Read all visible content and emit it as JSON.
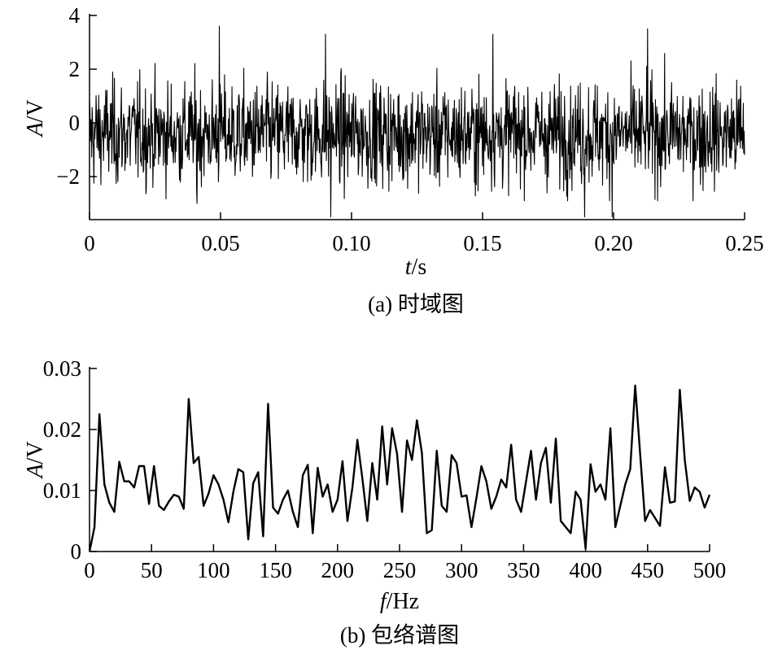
{
  "chart_data": [
    {
      "type": "line",
      "caption": "(a) 时域图",
      "xlabel_var": "t",
      "xlabel_unit": "/s",
      "ylabel_var": "A",
      "ylabel_unit": "/V",
      "xlim": [
        0,
        0.25
      ],
      "ylim": [
        -3.6,
        4
      ],
      "xticks": [
        {
          "v": 0,
          "label": "0"
        },
        {
          "v": 0.05,
          "label": "0.05"
        },
        {
          "v": 0.1,
          "label": "0.10"
        },
        {
          "v": 0.15,
          "label": "0.15"
        },
        {
          "v": 0.2,
          "label": "0.20"
        },
        {
          "v": 0.25,
          "label": "0.25"
        }
      ],
      "yticks": [
        {
          "v": -2,
          "label": "−2"
        },
        {
          "v": 0,
          "label": "0"
        },
        {
          "v": 2,
          "label": "2"
        },
        {
          "v": 4,
          "label": "4"
        }
      ],
      "signal": {
        "duration": 0.25,
        "samples": 1500,
        "noise_std": 1.0,
        "offset": -0.4,
        "peaks": [
          {
            "x": 0.0495,
            "y": 3.6
          },
          {
            "x": 0.09,
            "y": 3.3
          },
          {
            "x": 0.154,
            "y": 3.3
          },
          {
            "x": 0.213,
            "y": 3.5
          },
          {
            "x": 0.092,
            "y": -3.5
          },
          {
            "x": 0.189,
            "y": -3.5
          },
          {
            "x": 0.1995,
            "y": -3.5
          },
          {
            "x": 0.041,
            "y": -3.0
          }
        ]
      }
    },
    {
      "type": "line",
      "caption": "(b) 包络谱图",
      "xlabel_var": "f",
      "xlabel_unit": "/Hz",
      "ylabel_var": "A",
      "ylabel_unit": "/V",
      "xlim": [
        0,
        500
      ],
      "ylim": [
        0,
        0.03
      ],
      "xticks": [
        {
          "v": 0,
          "label": "0"
        },
        {
          "v": 50,
          "label": "50"
        },
        {
          "v": 100,
          "label": "100"
        },
        {
          "v": 150,
          "label": "150"
        },
        {
          "v": 200,
          "label": "200"
        },
        {
          "v": 250,
          "label": "250"
        },
        {
          "v": 300,
          "label": "300"
        },
        {
          "v": 350,
          "label": "350"
        },
        {
          "v": 400,
          "label": "400"
        },
        {
          "v": 450,
          "label": "450"
        },
        {
          "v": 500,
          "label": "500"
        }
      ],
      "yticks": [
        {
          "v": 0,
          "label": "0"
        },
        {
          "v": 0.01,
          "label": "0.01"
        },
        {
          "v": 0.02,
          "label": "0.02"
        },
        {
          "v": 0.03,
          "label": "0.03"
        }
      ],
      "x": [
        0,
        4,
        8,
        12,
        16,
        20,
        24,
        28,
        32,
        36,
        40,
        44,
        48,
        52,
        56,
        60,
        64,
        68,
        72,
        76,
        80,
        84,
        88,
        92,
        96,
        100,
        104,
        108,
        112,
        116,
        120,
        124,
        128,
        132,
        136,
        140,
        144,
        148,
        152,
        156,
        160,
        164,
        168,
        172,
        176,
        180,
        184,
        188,
        192,
        196,
        200,
        204,
        208,
        212,
        216,
        220,
        224,
        228,
        232,
        236,
        240,
        244,
        248,
        252,
        256,
        260,
        264,
        268,
        272,
        276,
        280,
        284,
        288,
        292,
        296,
        300,
        304,
        308,
        312,
        316,
        320,
        324,
        328,
        332,
        336,
        340,
        344,
        348,
        352,
        356,
        360,
        364,
        368,
        372,
        376,
        380,
        384,
        388,
        392,
        396,
        400,
        404,
        408,
        412,
        416,
        420,
        424,
        428,
        432,
        436,
        440,
        444,
        448,
        452,
        456,
        460,
        464,
        468,
        472,
        476,
        480,
        484,
        488,
        492,
        496,
        500
      ],
      "y": [
        0,
        0.004,
        0.0225,
        0.011,
        0.008,
        0.0065,
        0.0147,
        0.0115,
        0.0115,
        0.0105,
        0.014,
        0.014,
        0.0078,
        0.014,
        0.0075,
        0.0068,
        0.0082,
        0.0093,
        0.009,
        0.007,
        0.025,
        0.0145,
        0.0155,
        0.0075,
        0.0095,
        0.0125,
        0.011,
        0.0085,
        0.0048,
        0.0098,
        0.0135,
        0.013,
        0.002,
        0.0112,
        0.013,
        0.0025,
        0.0242,
        0.0072,
        0.0062,
        0.0085,
        0.01,
        0.0065,
        0.004,
        0.0125,
        0.0142,
        0.003,
        0.0137,
        0.009,
        0.011,
        0.0065,
        0.0085,
        0.0148,
        0.005,
        0.0105,
        0.0183,
        0.012,
        0.005,
        0.0145,
        0.0085,
        0.0205,
        0.011,
        0.0202,
        0.016,
        0.0065,
        0.0182,
        0.015,
        0.0215,
        0.0162,
        0.003,
        0.0035,
        0.0165,
        0.0075,
        0.0065,
        0.0158,
        0.0145,
        0.009,
        0.0092,
        0.004,
        0.0088,
        0.014,
        0.0115,
        0.007,
        0.009,
        0.0118,
        0.0105,
        0.0175,
        0.0085,
        0.0065,
        0.0115,
        0.0165,
        0.0085,
        0.0145,
        0.017,
        0.008,
        0.0185,
        0.005,
        0.004,
        0.003,
        0.0098,
        0.0085,
        0.0005,
        0.0143,
        0.0098,
        0.011,
        0.0085,
        0.0202,
        0.004,
        0.0075,
        0.011,
        0.0135,
        0.0272,
        0.016,
        0.005,
        0.0068,
        0.0055,
        0.0042,
        0.0138,
        0.008,
        0.0082,
        0.0265,
        0.015,
        0.0083,
        0.0105,
        0.0098,
        0.0072,
        0.0093
      ]
    }
  ]
}
